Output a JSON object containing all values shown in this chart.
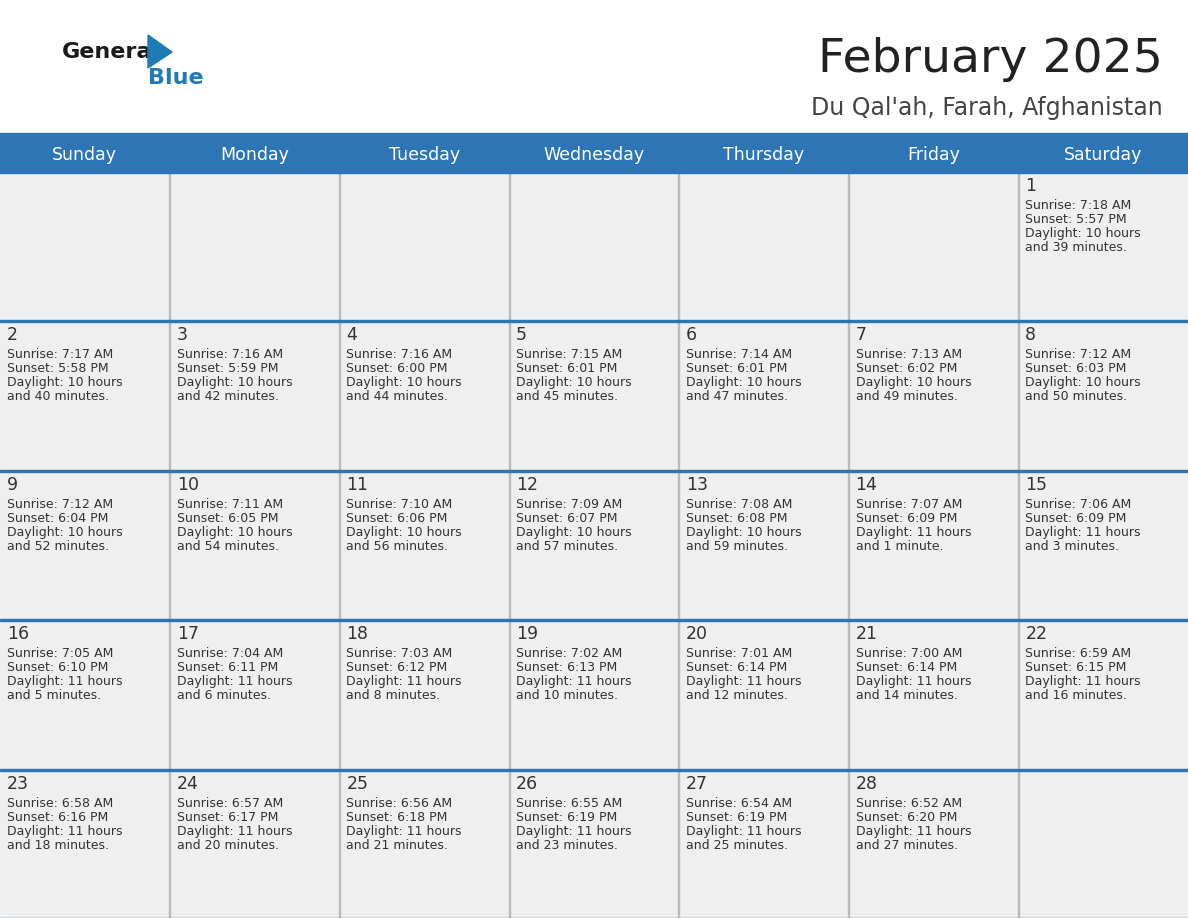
{
  "title": "February 2025",
  "subtitle": "Du Qal'ah, Farah, Afghanistan",
  "days_of_week": [
    "Sunday",
    "Monday",
    "Tuesday",
    "Wednesday",
    "Thursday",
    "Friday",
    "Saturday"
  ],
  "header_bg": "#2E75B6",
  "header_text": "#FFFFFF",
  "cell_bg": "#EFEFEF",
  "cell_bg_last": "#F5F5F5",
  "line_color": "#2E75B6",
  "day_number_color": "#333333",
  "cell_text_color": "#333333",
  "title_color": "#222222",
  "subtitle_color": "#444444",
  "logo_general_color": "#1A1A1A",
  "logo_blue_color": "#1F7AB8",
  "calendar_data": [
    [
      null,
      null,
      null,
      null,
      null,
      null,
      {
        "day": 1,
        "sunrise": "7:18 AM",
        "sunset": "5:57 PM",
        "daylight_line1": "Daylight: 10 hours",
        "daylight_line2": "and 39 minutes."
      }
    ],
    [
      {
        "day": 2,
        "sunrise": "7:17 AM",
        "sunset": "5:58 PM",
        "daylight_line1": "Daylight: 10 hours",
        "daylight_line2": "and 40 minutes."
      },
      {
        "day": 3,
        "sunrise": "7:16 AM",
        "sunset": "5:59 PM",
        "daylight_line1": "Daylight: 10 hours",
        "daylight_line2": "and 42 minutes."
      },
      {
        "day": 4,
        "sunrise": "7:16 AM",
        "sunset": "6:00 PM",
        "daylight_line1": "Daylight: 10 hours",
        "daylight_line2": "and 44 minutes."
      },
      {
        "day": 5,
        "sunrise": "7:15 AM",
        "sunset": "6:01 PM",
        "daylight_line1": "Daylight: 10 hours",
        "daylight_line2": "and 45 minutes."
      },
      {
        "day": 6,
        "sunrise": "7:14 AM",
        "sunset": "6:01 PM",
        "daylight_line1": "Daylight: 10 hours",
        "daylight_line2": "and 47 minutes."
      },
      {
        "day": 7,
        "sunrise": "7:13 AM",
        "sunset": "6:02 PM",
        "daylight_line1": "Daylight: 10 hours",
        "daylight_line2": "and 49 minutes."
      },
      {
        "day": 8,
        "sunrise": "7:12 AM",
        "sunset": "6:03 PM",
        "daylight_line1": "Daylight: 10 hours",
        "daylight_line2": "and 50 minutes."
      }
    ],
    [
      {
        "day": 9,
        "sunrise": "7:12 AM",
        "sunset": "6:04 PM",
        "daylight_line1": "Daylight: 10 hours",
        "daylight_line2": "and 52 minutes."
      },
      {
        "day": 10,
        "sunrise": "7:11 AM",
        "sunset": "6:05 PM",
        "daylight_line1": "Daylight: 10 hours",
        "daylight_line2": "and 54 minutes."
      },
      {
        "day": 11,
        "sunrise": "7:10 AM",
        "sunset": "6:06 PM",
        "daylight_line1": "Daylight: 10 hours",
        "daylight_line2": "and 56 minutes."
      },
      {
        "day": 12,
        "sunrise": "7:09 AM",
        "sunset": "6:07 PM",
        "daylight_line1": "Daylight: 10 hours",
        "daylight_line2": "and 57 minutes."
      },
      {
        "day": 13,
        "sunrise": "7:08 AM",
        "sunset": "6:08 PM",
        "daylight_line1": "Daylight: 10 hours",
        "daylight_line2": "and 59 minutes."
      },
      {
        "day": 14,
        "sunrise": "7:07 AM",
        "sunset": "6:09 PM",
        "daylight_line1": "Daylight: 11 hours",
        "daylight_line2": "and 1 minute."
      },
      {
        "day": 15,
        "sunrise": "7:06 AM",
        "sunset": "6:09 PM",
        "daylight_line1": "Daylight: 11 hours",
        "daylight_line2": "and 3 minutes."
      }
    ],
    [
      {
        "day": 16,
        "sunrise": "7:05 AM",
        "sunset": "6:10 PM",
        "daylight_line1": "Daylight: 11 hours",
        "daylight_line2": "and 5 minutes."
      },
      {
        "day": 17,
        "sunrise": "7:04 AM",
        "sunset": "6:11 PM",
        "daylight_line1": "Daylight: 11 hours",
        "daylight_line2": "and 6 minutes."
      },
      {
        "day": 18,
        "sunrise": "7:03 AM",
        "sunset": "6:12 PM",
        "daylight_line1": "Daylight: 11 hours",
        "daylight_line2": "and 8 minutes."
      },
      {
        "day": 19,
        "sunrise": "7:02 AM",
        "sunset": "6:13 PM",
        "daylight_line1": "Daylight: 11 hours",
        "daylight_line2": "and 10 minutes."
      },
      {
        "day": 20,
        "sunrise": "7:01 AM",
        "sunset": "6:14 PM",
        "daylight_line1": "Daylight: 11 hours",
        "daylight_line2": "and 12 minutes."
      },
      {
        "day": 21,
        "sunrise": "7:00 AM",
        "sunset": "6:14 PM",
        "daylight_line1": "Daylight: 11 hours",
        "daylight_line2": "and 14 minutes."
      },
      {
        "day": 22,
        "sunrise": "6:59 AM",
        "sunset": "6:15 PM",
        "daylight_line1": "Daylight: 11 hours",
        "daylight_line2": "and 16 minutes."
      }
    ],
    [
      {
        "day": 23,
        "sunrise": "6:58 AM",
        "sunset": "6:16 PM",
        "daylight_line1": "Daylight: 11 hours",
        "daylight_line2": "and 18 minutes."
      },
      {
        "day": 24,
        "sunrise": "6:57 AM",
        "sunset": "6:17 PM",
        "daylight_line1": "Daylight: 11 hours",
        "daylight_line2": "and 20 minutes."
      },
      {
        "day": 25,
        "sunrise": "6:56 AM",
        "sunset": "6:18 PM",
        "daylight_line1": "Daylight: 11 hours",
        "daylight_line2": "and 21 minutes."
      },
      {
        "day": 26,
        "sunrise": "6:55 AM",
        "sunset": "6:19 PM",
        "daylight_line1": "Daylight: 11 hours",
        "daylight_line2": "and 23 minutes."
      },
      {
        "day": 27,
        "sunrise": "6:54 AM",
        "sunset": "6:19 PM",
        "daylight_line1": "Daylight: 11 hours",
        "daylight_line2": "and 25 minutes."
      },
      {
        "day": 28,
        "sunrise": "6:52 AM",
        "sunset": "6:20 PM",
        "daylight_line1": "Daylight: 11 hours",
        "daylight_line2": "and 27 minutes."
      },
      null
    ]
  ]
}
